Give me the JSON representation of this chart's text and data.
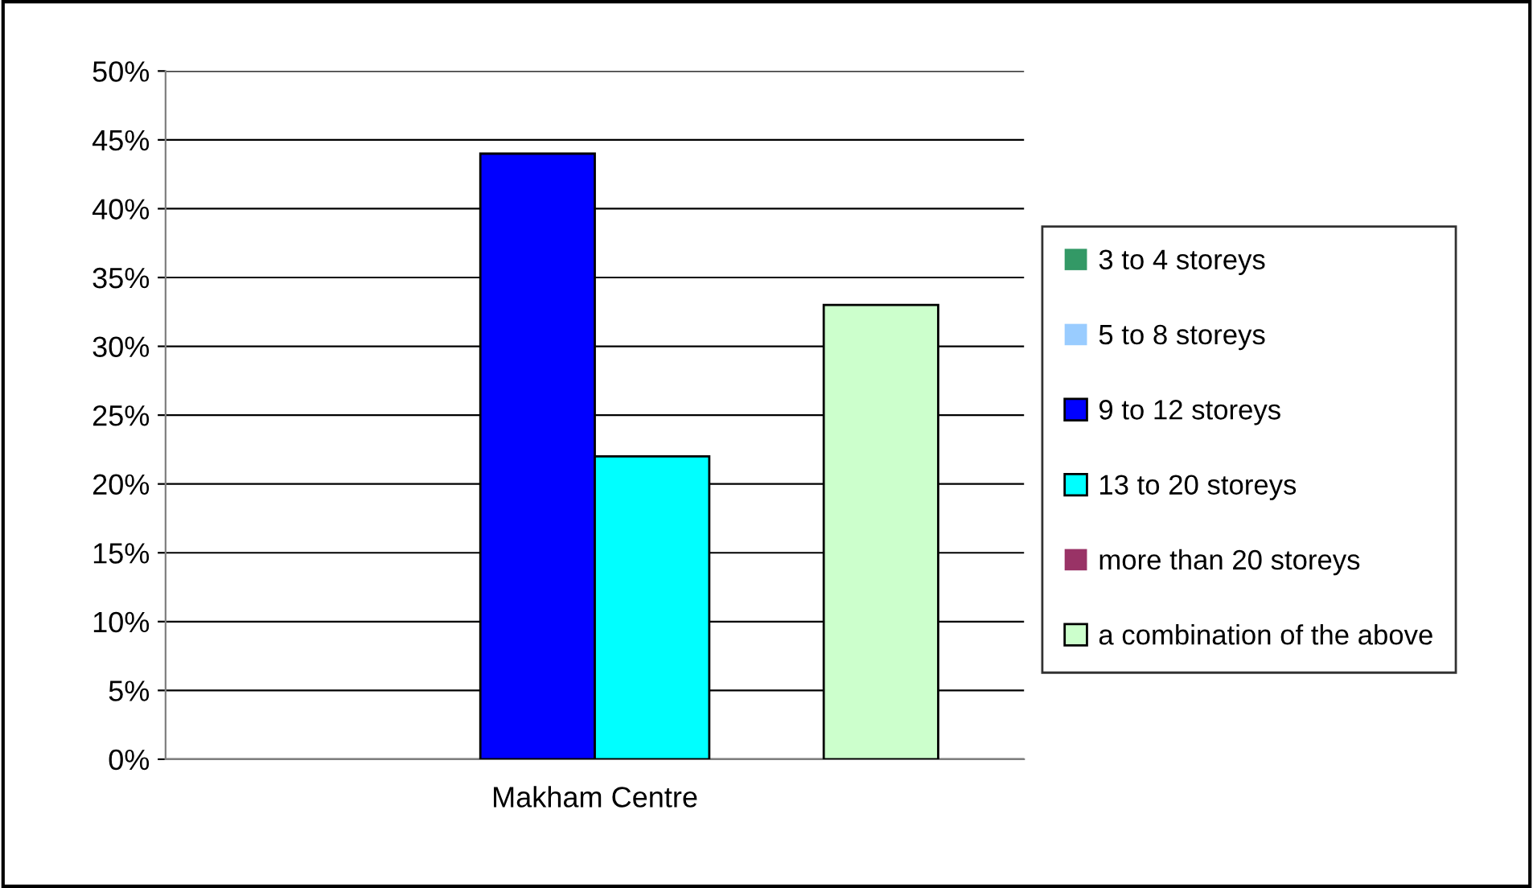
{
  "chart_data": {
    "type": "bar",
    "categories": [
      "Makham Centre"
    ],
    "series": [
      {
        "name": "3 to 4 storeys",
        "color": "#339966",
        "values": [
          0
        ]
      },
      {
        "name": "5 to 8 storeys",
        "color": "#99ccff",
        "values": [
          0
        ]
      },
      {
        "name": "9 to 12 storeys",
        "color": "#0000ff",
        "values": [
          44
        ]
      },
      {
        "name": "13 to 20 storeys",
        "color": "#00ffff",
        "values": [
          22
        ]
      },
      {
        "name": "more than 20 storeys",
        "color": "#993366",
        "values": [
          0
        ]
      },
      {
        "name": "a combination of the above",
        "color": "#ccffcc",
        "values": [
          33
        ]
      }
    ],
    "ylim": [
      0,
      50
    ],
    "yticks": [
      {
        "value": 0,
        "label": "0%"
      },
      {
        "value": 5,
        "label": "5%"
      },
      {
        "value": 10,
        "label": "10%"
      },
      {
        "value": 15,
        "label": "15%"
      },
      {
        "value": 20,
        "label": "20%"
      },
      {
        "value": 25,
        "label": "25%"
      },
      {
        "value": 30,
        "label": "30%"
      },
      {
        "value": 35,
        "label": "35%"
      },
      {
        "value": 40,
        "label": "40%"
      },
      {
        "value": 45,
        "label": "45%"
      },
      {
        "value": 50,
        "label": "50%"
      }
    ],
    "grid": "y",
    "legend": "right"
  }
}
